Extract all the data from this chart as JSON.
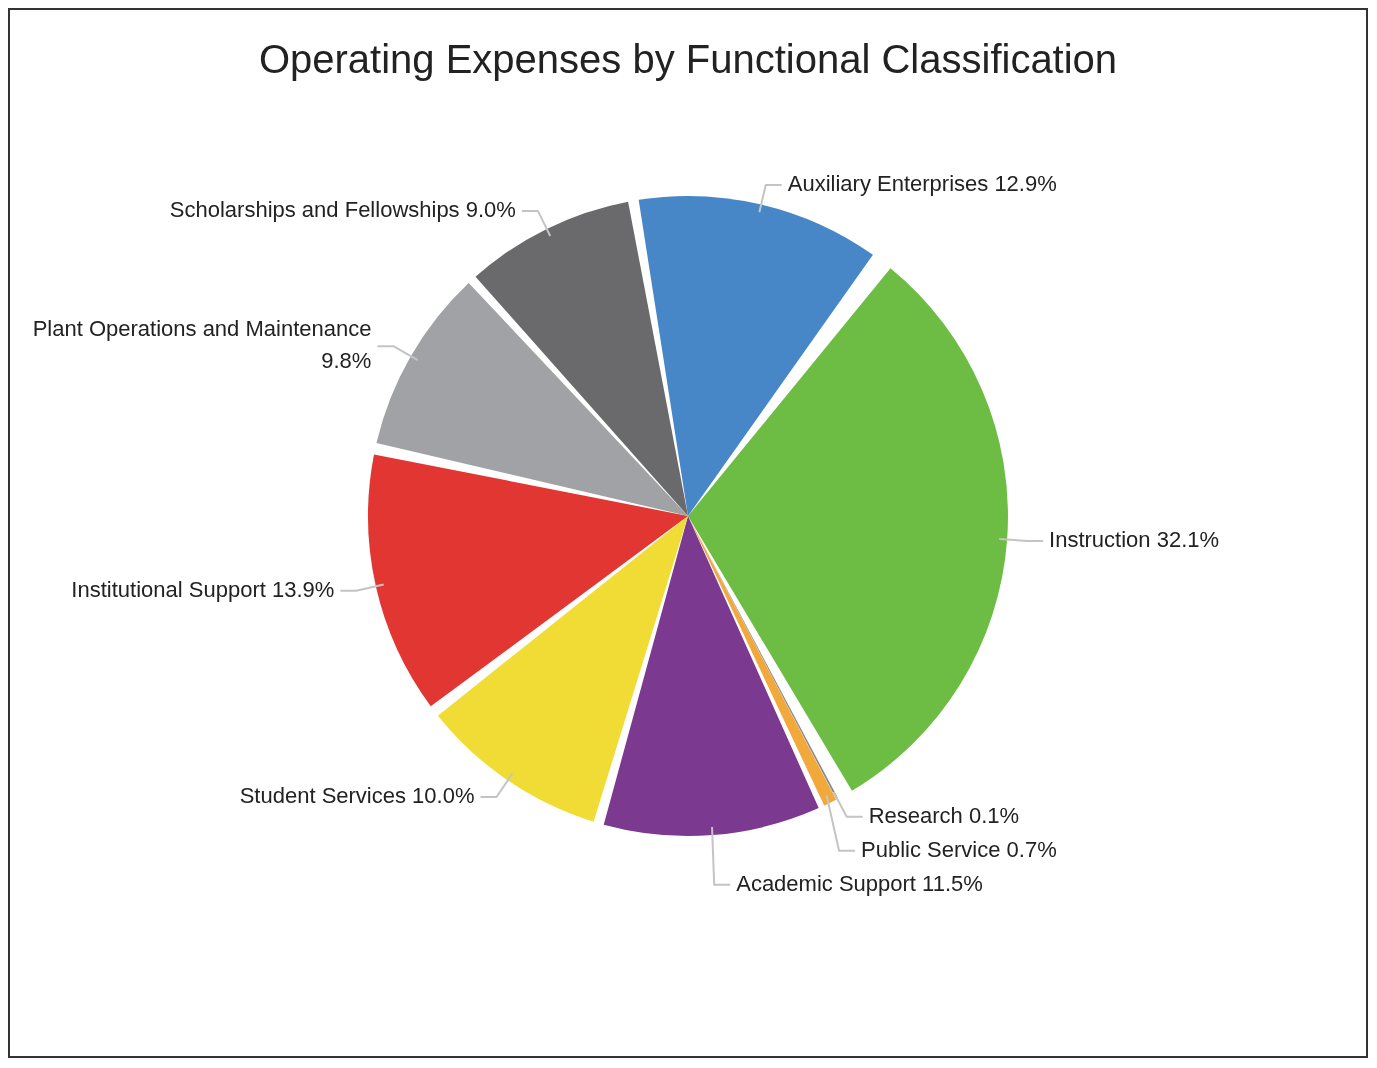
{
  "chart_data": {
    "type": "pie",
    "title": "Operating Expenses by Functional Classification",
    "categories": [
      "Auxiliary Enterprises",
      "Instruction",
      "Research",
      "Public Service",
      "Academic Support",
      "Student Services",
      "Institutional Support",
      "Plant Operations and Maintenance",
      "Scholarships and Fellowships"
    ],
    "values": [
      12.9,
      32.1,
      0.1,
      0.7,
      11.5,
      10.0,
      13.9,
      9.8,
      9.0
    ],
    "value_labels": [
      "12.9%",
      "32.1%",
      "0.1%",
      "0.7%",
      "11.5%",
      "10.0%",
      "13.9%",
      "9.8%",
      "9.0%"
    ],
    "colors": [
      "#4787c7",
      "#6dbd45",
      "#8a8a8a",
      "#f2a93b",
      "#7b3990",
      "#f0dc35",
      "#e23633",
      "#a1a2a5",
      "#6a6a6c"
    ],
    "legend": false
  }
}
